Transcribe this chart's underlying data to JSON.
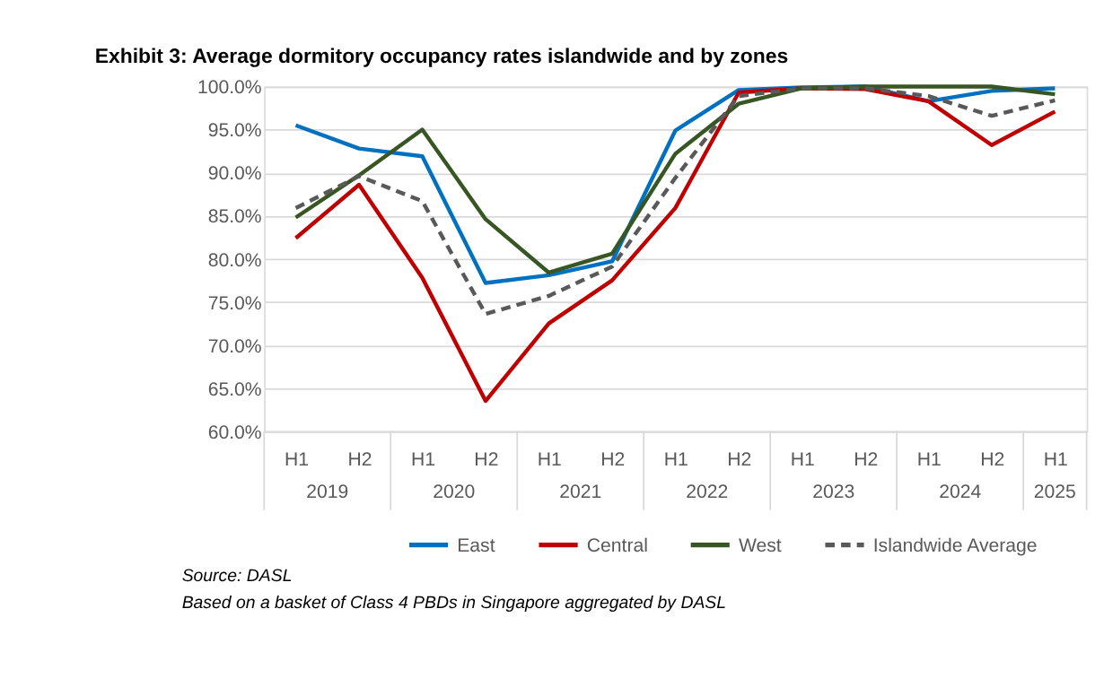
{
  "chart_data": {
    "type": "line",
    "title": "Exhibit 3: Average dormitory occupancy rates islandwide and by zones",
    "categories": [
      "H1",
      "H2",
      "H1",
      "H2",
      "H1",
      "H2",
      "H1",
      "H2",
      "H1",
      "H2",
      "H1",
      "H2",
      "H1"
    ],
    "series": [
      {
        "name": "East",
        "color": "#0070c0",
        "values": [
          95.5,
          92.8,
          91.9,
          77.2,
          78.1,
          79.7,
          94.9,
          99.6,
          99.9,
          100,
          98.3,
          99.5,
          99.8
        ]
      },
      {
        "name": "Central",
        "color": "#c00000",
        "values": [
          82.4,
          88.6,
          77.8,
          63.5,
          72.5,
          77.5,
          85.9,
          99.3,
          99.8,
          99.7,
          98.3,
          93.2,
          97.1
        ]
      },
      {
        "name": "West",
        "color": "#375623",
        "values": [
          84.8,
          89.7,
          95.0,
          84.6,
          78.4,
          80.6,
          92.2,
          98.0,
          99.8,
          100,
          100,
          100,
          99.1
        ]
      },
      {
        "name": "Islandwide Average",
        "color": "#595959",
        "line_style": "dashed",
        "values": [
          85.9,
          89.6,
          86.7,
          73.6,
          75.7,
          79.1,
          89.4,
          98.9,
          99.8,
          99.8,
          98.9,
          96.6,
          98.4
        ]
      }
    ],
    "ylim": [
      60,
      100
    ],
    "yticks": [
      {
        "value": 60,
        "label": "60.0%"
      },
      {
        "value": 65,
        "label": "65.0%"
      },
      {
        "value": 70,
        "label": "70.0%"
      },
      {
        "value": 75,
        "label": "75.0%"
      },
      {
        "value": 80,
        "label": "80.0%"
      },
      {
        "value": 85,
        "label": "85.0%"
      },
      {
        "value": 90,
        "label": "90.0%"
      },
      {
        "value": 95,
        "label": "95.0%"
      },
      {
        "value": 100,
        "label": "100.0%"
      }
    ],
    "grid": "y",
    "legend": "bottom",
    "marker": "none",
    "line_style": "solid",
    "annotations": [
      "2019",
      "2020",
      "2021",
      "2022",
      "2023",
      "2024",
      "2025",
      "Source: DASL",
      "Based on a basket of Class 4 PBDs in Singapore aggregated by DASL"
    ]
  }
}
